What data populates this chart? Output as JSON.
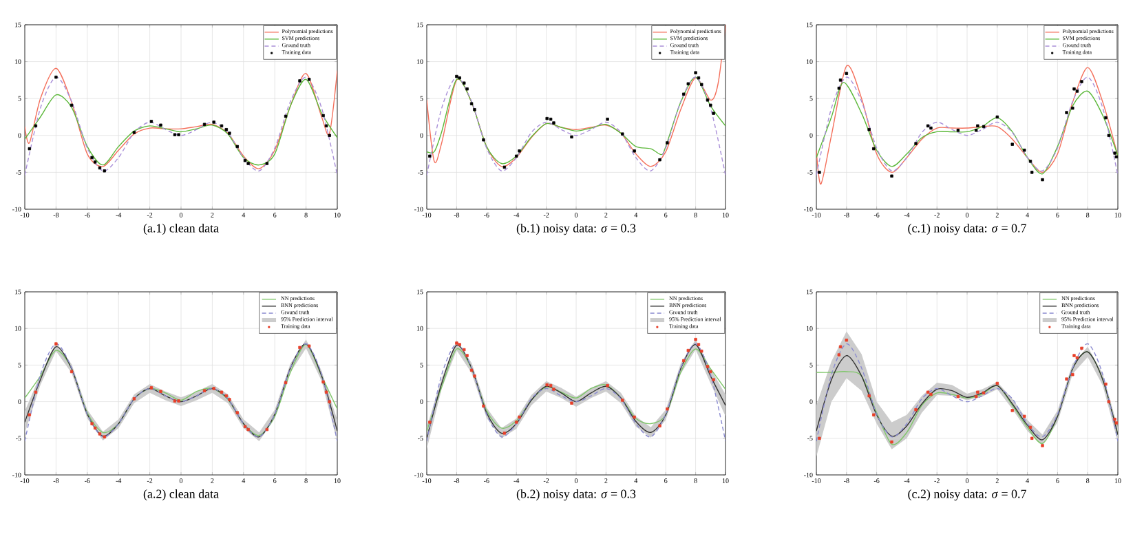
{
  "chart_data": [
    {
      "type": "line",
      "title": "(a.1) clean data",
      "xlim": [
        -10,
        10
      ],
      "ylim": [
        -10,
        15
      ],
      "xticks": [
        -10,
        -8,
        -6,
        -4,
        -2,
        0,
        2,
        4,
        6,
        8,
        10
      ],
      "yticks": [
        -10,
        -5,
        0,
        5,
        10,
        15
      ],
      "grid": true,
      "legend": "top right",
      "x": [
        -10,
        -9,
        -8,
        -7,
        -6,
        -5,
        -4,
        -3,
        -2,
        -1,
        0,
        1,
        2,
        3,
        4,
        5,
        6,
        7,
        8,
        9,
        10
      ],
      "series": [
        {
          "name": "Polynomial predictions",
          "color": "#f4705c",
          "x": [
            -10,
            -9.7,
            -9,
            -8,
            -7,
            -6,
            -5,
            -4,
            -3,
            -2,
            -1,
            0,
            1,
            2,
            3,
            4,
            5,
            6,
            7,
            8,
            9,
            9.5,
            10
          ],
          "values": [
            1.2,
            -1,
            5,
            9.1,
            4.5,
            -2.5,
            -4.2,
            -2,
            0.2,
            1,
            0.9,
            0.9,
            1.2,
            1.5,
            0.3,
            -2.8,
            -4.5,
            -2,
            4,
            8.4,
            2.5,
            0.3,
            8.8
          ]
        },
        {
          "name": "SVM predictions",
          "color": "#5cb83a",
          "values": [
            -0.5,
            2.5,
            5.5,
            3.8,
            -1.5,
            -4,
            -1.5,
            0.6,
            1.3,
            0.9,
            0.5,
            0.9,
            1.4,
            0.2,
            -3,
            -4,
            -2.5,
            4,
            7.6,
            3,
            -0.3
          ]
        },
        {
          "name": "Ground truth",
          "color": "#a98fd8",
          "line_style": "dashed",
          "values": [
            -5.4,
            3.7,
            7.9,
            4.6,
            -1.7,
            -4.8,
            -3.0,
            0.4,
            1.8,
            0.8,
            0,
            0.8,
            1.8,
            0.4,
            -3.0,
            -4.8,
            -1.7,
            4.6,
            7.9,
            3.7,
            -5.4
          ]
        },
        {
          "name": "Training data",
          "type": "scatter",
          "marker": "square",
          "color": "#000000",
          "x": [
            -9.7,
            -9.3,
            -8,
            -7,
            -5.7,
            -5.5,
            -5.2,
            -4.9,
            -3,
            -1.9,
            -1.3,
            -0.4,
            -0.15,
            1.5,
            2.1,
            2.6,
            2.9,
            3.1,
            3.6,
            4.1,
            4.3,
            5.5,
            6.7,
            7.6,
            8.2,
            9.1,
            9.3,
            9.5
          ],
          "values": [
            -1.8,
            1.3,
            7.9,
            4.1,
            -3,
            -3.6,
            -4.4,
            -4.8,
            0.4,
            1.9,
            1.4,
            0.1,
            0.1,
            1.5,
            1.8,
            1.3,
            0.8,
            0.3,
            -1.5,
            -3.4,
            -3.8,
            -3.8,
            2.6,
            7.4,
            7.6,
            2.7,
            1.3,
            0
          ]
        }
      ]
    },
    {
      "type": "line",
      "title": "(b.1) noisy data: *σ* = 0.3",
      "xlim": [
        -10,
        10
      ],
      "ylim": [
        -10,
        15
      ],
      "xticks": [
        -10,
        -8,
        -6,
        -4,
        -2,
        0,
        2,
        4,
        6,
        8,
        10
      ],
      "yticks": [
        -10,
        -5,
        0,
        5,
        10,
        15
      ],
      "grid": true,
      "legend": "top right",
      "x": [
        -10,
        -9,
        -8,
        -7,
        -6,
        -5,
        -4,
        -3,
        -2,
        -1,
        0,
        1,
        2,
        3,
        4,
        5,
        6,
        7,
        8,
        9,
        10
      ],
      "series": [
        {
          "name": "Polynomial predictions",
          "color": "#f4705c",
          "x": [
            -10,
            -9.5,
            -9,
            -8,
            -7,
            -6,
            -5,
            -4,
            -3,
            -2,
            -1,
            0,
            1,
            2,
            3,
            4,
            5,
            6,
            7,
            8,
            9,
            9.5,
            10
          ],
          "values": [
            4.8,
            -3.5,
            -1,
            7.5,
            4.5,
            -1.5,
            -4.2,
            -3,
            -0.3,
            1.6,
            1.1,
            0.8,
            1.1,
            1.4,
            0.3,
            -2.5,
            -4.2,
            -2.2,
            3.5,
            7.8,
            4.8,
            7,
            15
          ]
        },
        {
          "name": "SVM predictions",
          "color": "#5cb83a",
          "x": [
            -10,
            -9.5,
            -9,
            -8,
            -7,
            -6,
            -5,
            -4,
            -3,
            -2,
            -1,
            0,
            1,
            2,
            3,
            4,
            5,
            5.7,
            6,
            7,
            8,
            9,
            10
          ],
          "values": [
            -2.2,
            -2.2,
            0.5,
            7.6,
            4.5,
            -1.5,
            -3.8,
            -2.8,
            -0.2,
            1.6,
            1.1,
            0.6,
            1,
            1.5,
            0.3,
            -1.5,
            -1.8,
            -2.6,
            -1.5,
            4.5,
            7.9,
            4,
            1.3
          ]
        },
        {
          "name": "Ground truth",
          "color": "#a98fd8",
          "line_style": "dashed",
          "values": [
            -5.4,
            3.7,
            7.9,
            4.6,
            -1.7,
            -4.8,
            -3.0,
            0.4,
            1.8,
            0.8,
            0,
            0.8,
            1.8,
            0.4,
            -3.0,
            -4.8,
            -1.7,
            4.6,
            7.9,
            3.7,
            -5.4
          ]
        },
        {
          "name": "Training data",
          "type": "scatter",
          "marker": "square",
          "color": "#000000",
          "x": [
            -9.8,
            -8,
            -7.8,
            -7.5,
            -7.3,
            -7,
            -6.8,
            -6.2,
            -4.8,
            -4,
            -3.8,
            -1.95,
            -1.7,
            -1.5,
            -0.3,
            2.1,
            3.1,
            3.9,
            5.6,
            6.1,
            7.2,
            7.5,
            8,
            8.2,
            8.4,
            8.8,
            9,
            9.2
          ],
          "values": [
            -2.8,
            8,
            7.8,
            7.1,
            6.3,
            4.3,
            3.5,
            -0.6,
            -4.3,
            -2.8,
            -2.1,
            2.3,
            2.2,
            1.7,
            -0.2,
            2.2,
            0.2,
            -2.1,
            -3.3,
            -1,
            5.6,
            7,
            8.5,
            7.8,
            6.9,
            4.8,
            4.1,
            3
          ]
        }
      ]
    },
    {
      "type": "line",
      "title": "(c.1) noisy data: *σ* = 0.7",
      "xlim": [
        -10,
        10
      ],
      "ylim": [
        -10,
        15
      ],
      "xticks": [
        -10,
        -8,
        -6,
        -4,
        -2,
        0,
        2,
        4,
        6,
        8,
        10
      ],
      "yticks": [
        -10,
        -5,
        0,
        5,
        10,
        15
      ],
      "grid": true,
      "legend": "top right",
      "x": [
        -10,
        -9,
        -8,
        -7,
        -6,
        -5,
        -4,
        -3,
        -2,
        -1,
        0,
        1,
        2,
        3,
        4,
        5,
        6,
        7,
        8,
        9,
        10
      ],
      "series": [
        {
          "name": "Polynomial predictions",
          "color": "#f4705c",
          "x": [
            -10,
            -9.7,
            -9,
            -8,
            -7,
            -6,
            -5,
            -4,
            -3,
            -2,
            -1,
            0,
            1,
            2,
            3,
            4,
            5,
            6,
            7,
            8,
            9,
            10
          ],
          "values": [
            -2,
            -6.6,
            0,
            9.4,
            5,
            -2.5,
            -5,
            -3,
            -0.5,
            1,
            1,
            1,
            1.2,
            1.2,
            -0.5,
            -3,
            -5,
            -2.5,
            4.5,
            9.2,
            4.5,
            -2.8
          ]
        },
        {
          "name": "SVM predictions",
          "color": "#5cb83a",
          "x": [
            -10,
            -9,
            -8.2,
            -7,
            -6,
            -5,
            -4,
            -3,
            -2,
            -1,
            0,
            1,
            2,
            3,
            4,
            5,
            6,
            7,
            8,
            9,
            10
          ],
          "values": [
            -3,
            2.5,
            7.2,
            3,
            -2,
            -4.2,
            -2.5,
            -0.3,
            0.5,
            0.5,
            0.5,
            1.2,
            2.4,
            0.5,
            -3,
            -5.2,
            -1.5,
            4,
            6,
            2.7,
            -2.7
          ]
        },
        {
          "name": "Ground truth",
          "color": "#a98fd8",
          "line_style": "dashed",
          "values": [
            -5.4,
            3.7,
            7.9,
            4.6,
            -1.7,
            -4.8,
            -3.0,
            0.4,
            1.8,
            0.8,
            0,
            0.8,
            1.8,
            0.4,
            -3.0,
            -4.8,
            -1.7,
            4.6,
            7.9,
            3.7,
            -5.4
          ]
        },
        {
          "name": "Training data",
          "type": "scatter",
          "marker": "square",
          "color": "#000000",
          "x": [
            -9.8,
            -8.5,
            -8.4,
            -8,
            -6.5,
            -6.2,
            -5,
            -3.4,
            -2.6,
            -2.4,
            -0.6,
            0.6,
            0.7,
            1.1,
            2,
            3,
            3.8,
            4.2,
            4.3,
            5,
            6.6,
            7,
            7.1,
            7.3,
            7.6,
            9.2,
            9.4,
            9.8,
            9.9
          ],
          "values": [
            -5,
            6.4,
            7.5,
            8.4,
            0.8,
            -1.8,
            -5.5,
            -1.1,
            1.3,
            1,
            0.7,
            0.7,
            1.3,
            1.2,
            2.5,
            -1.2,
            -2,
            -3.5,
            -5,
            -6,
            3.1,
            3.7,
            6.3,
            6,
            7.3,
            2.4,
            0,
            -2.4,
            -2.9
          ]
        }
      ]
    },
    {
      "type": "line",
      "title": "(a.2) clean data",
      "annotations": [
        "95% Prediction interval"
      ],
      "xlim": [
        -10,
        10
      ],
      "ylim": [
        -10,
        15
      ],
      "xticks": [
        -10,
        -8,
        -6,
        -4,
        -2,
        0,
        2,
        4,
        6,
        8,
        10
      ],
      "yticks": [
        -10,
        -5,
        0,
        5,
        10,
        15
      ],
      "grid": true,
      "legend": "top right",
      "x": [
        -10,
        -9,
        -8,
        -7,
        -6,
        -5,
        -4,
        -3,
        -2,
        -1,
        0,
        1,
        2,
        3,
        4,
        5,
        6,
        7,
        8,
        9,
        10
      ],
      "series": [
        {
          "name": "NN predictions",
          "color": "#7fc66a",
          "values": [
            0.5,
            3.5,
            7,
            4.5,
            -1.5,
            -4.2,
            -3,
            0.4,
            1.8,
            1.2,
            0.2,
            1.4,
            1.8,
            0.3,
            -3,
            -4.6,
            -2,
            4,
            7.8,
            3.5,
            -1
          ]
        },
        {
          "name": "BNN predictions",
          "color": "#333333",
          "values": [
            -2.8,
            3,
            7.5,
            4.5,
            -1.7,
            -4.7,
            -3,
            0.4,
            1.8,
            0.8,
            0,
            0.8,
            1.8,
            0.4,
            -3,
            -4.8,
            -1.7,
            4.6,
            7.9,
            3.5,
            -4
          ],
          "lower": [
            -4.3,
            2.3,
            6.9,
            3.9,
            -2.3,
            -5.3,
            -3.6,
            -0.2,
            1.2,
            0.2,
            -0.6,
            0.2,
            1.2,
            -0.2,
            -3.6,
            -5.4,
            -2.3,
            4,
            7.3,
            2.8,
            -5.5
          ],
          "upper": [
            -1.3,
            3.7,
            8.1,
            5.1,
            -1.1,
            -4.1,
            -2.4,
            1,
            2.4,
            1.4,
            0.6,
            1.4,
            2.4,
            1,
            -2.4,
            -4.2,
            -1.1,
            5.2,
            8.5,
            4.2,
            -2.5
          ]
        },
        {
          "name": "Ground truth",
          "color": "#8a8ad0",
          "line_style": "dashed",
          "values": [
            -5.4,
            3.7,
            7.9,
            4.6,
            -1.7,
            -4.8,
            -3.0,
            0.4,
            1.8,
            0.8,
            0,
            0.8,
            1.8,
            0.4,
            -3.0,
            -4.8,
            -1.7,
            4.6,
            7.9,
            3.7,
            -5.4
          ]
        },
        {
          "name": "Training data",
          "type": "scatter",
          "marker": "square",
          "color": "#e8402a",
          "x": [
            -9.7,
            -9.3,
            -8,
            -7,
            -5.7,
            -5.5,
            -5.2,
            -4.9,
            -3,
            -1.9,
            -1.3,
            -0.4,
            -0.15,
            1.5,
            2.1,
            2.6,
            2.9,
            3.1,
            3.6,
            4.1,
            4.3,
            5.5,
            6.7,
            7.6,
            8.2,
            9.1,
            9.3,
            9.5
          ],
          "values": [
            -1.8,
            1.3,
            7.9,
            4.1,
            -3,
            -3.6,
            -4.4,
            -4.8,
            0.4,
            1.9,
            1.4,
            0.1,
            0.1,
            1.5,
            1.8,
            1.3,
            0.8,
            0.3,
            -1.5,
            -3.4,
            -3.8,
            -3.8,
            2.6,
            7.4,
            7.6,
            2.7,
            1.3,
            0
          ]
        }
      ]
    },
    {
      "type": "line",
      "title": "(b.2) noisy data: *σ* = 0.3",
      "annotations": [
        "95% Prediction interval"
      ],
      "xlim": [
        -10,
        10
      ],
      "ylim": [
        -10,
        15
      ],
      "xticks": [
        -10,
        -8,
        -6,
        -4,
        -2,
        0,
        2,
        4,
        6,
        8,
        10
      ],
      "yticks": [
        -10,
        -5,
        0,
        5,
        10,
        15
      ],
      "grid": true,
      "legend": "top right",
      "x": [
        -10,
        -9,
        -8,
        -7,
        -6,
        -5,
        -4,
        -3,
        -2,
        -1,
        0,
        1,
        2,
        3,
        4,
        5,
        6,
        7,
        8,
        9,
        10
      ],
      "series": [
        {
          "name": "NN predictions",
          "color": "#7fc66a",
          "values": [
            -4,
            2,
            7.2,
            4.5,
            -1.2,
            -3.6,
            -2.6,
            0.2,
            2,
            1.3,
            0.5,
            1.8,
            2.3,
            0.5,
            -2.3,
            -3,
            -1.8,
            4,
            7.2,
            4.5,
            1.7
          ]
        },
        {
          "name": "BNN predictions",
          "color": "#333333",
          "values": [
            -5,
            2.5,
            7.7,
            4.6,
            -1.5,
            -4.3,
            -3,
            0.2,
            2.1,
            1.2,
            0,
            1.2,
            2.1,
            0.5,
            -2.7,
            -4.2,
            -1.8,
            4.5,
            7.8,
            3.5,
            -0.5
          ],
          "lower": [
            -6.5,
            1.8,
            7,
            3.9,
            -2.2,
            -5,
            -3.7,
            -0.5,
            1.4,
            0.5,
            -0.7,
            0.5,
            1.4,
            -0.2,
            -3.4,
            -4.9,
            -2.5,
            3.8,
            7.1,
            2.5,
            -2
          ],
          "upper": [
            -3.5,
            3.2,
            8.4,
            5.3,
            -0.8,
            -3.6,
            -2.3,
            0.9,
            2.8,
            1.9,
            0.7,
            1.9,
            2.8,
            1.2,
            -2,
            -3.5,
            -1.1,
            5.2,
            8.5,
            4.5,
            1
          ]
        },
        {
          "name": "Ground truth",
          "color": "#8a8ad0",
          "line_style": "dashed",
          "values": [
            -5.4,
            3.7,
            7.9,
            4.6,
            -1.7,
            -4.8,
            -3.0,
            0.4,
            1.8,
            0.8,
            0,
            0.8,
            1.8,
            0.4,
            -3.0,
            -4.8,
            -1.7,
            4.6,
            7.9,
            3.7,
            -5.4
          ]
        },
        {
          "name": "Training data",
          "type": "scatter",
          "marker": "square",
          "color": "#e8402a",
          "x": [
            -9.8,
            -8,
            -7.8,
            -7.5,
            -7.3,
            -7,
            -6.8,
            -6.2,
            -4.8,
            -4,
            -3.8,
            -1.95,
            -1.7,
            -1.5,
            -0.3,
            2.1,
            3.1,
            3.9,
            5.6,
            6.1,
            7.2,
            7.5,
            8,
            8.2,
            8.4,
            8.8,
            9,
            9.2
          ],
          "values": [
            -2.8,
            8,
            7.8,
            7.1,
            6.3,
            4.3,
            3.5,
            -0.6,
            -4.3,
            -2.8,
            -2.1,
            2.3,
            2.2,
            1.7,
            -0.2,
            2.2,
            0.2,
            -2.1,
            -3.3,
            -1,
            5.6,
            7,
            8.5,
            7.8,
            6.9,
            4.8,
            4.1,
            3
          ]
        }
      ]
    },
    {
      "type": "line",
      "title": "(c.2) noisy data: *σ* = 0.7",
      "annotations": [
        "95% Prediction interval"
      ],
      "xlim": [
        -10,
        10
      ],
      "ylim": [
        -10,
        15
      ],
      "xticks": [
        -10,
        -8,
        -6,
        -4,
        -2,
        0,
        2,
        4,
        6,
        8,
        10
      ],
      "yticks": [
        -10,
        -5,
        0,
        5,
        10,
        15
      ],
      "grid": true,
      "legend": "top right",
      "x": [
        -10,
        -9,
        -8,
        -7,
        -6,
        -5,
        -4,
        -3,
        -2,
        -1,
        0,
        1,
        2,
        3,
        4,
        5,
        6,
        7,
        8,
        9,
        10
      ],
      "series": [
        {
          "name": "NN predictions",
          "color": "#7fc66a",
          "values": [
            4,
            4,
            4.1,
            3.5,
            -1.5,
            -5.8,
            -4.2,
            -0.5,
            1.2,
            1,
            0.5,
            1,
            2.2,
            -0.5,
            -3.5,
            -5.7,
            -2,
            4.5,
            6.8,
            3,
            -4.5
          ]
        },
        {
          "name": "BNN predictions",
          "color": "#333333",
          "values": [
            -4,
            3,
            6.3,
            3.5,
            -1.8,
            -4.7,
            -3.3,
            -0.3,
            1.7,
            1.5,
            0.6,
            1.2,
            2.2,
            -0.3,
            -3.2,
            -5.2,
            -2,
            4.5,
            6.8,
            3,
            -4.5
          ],
          "lower": [
            -7.5,
            0,
            3.2,
            1.5,
            -3,
            -6.5,
            -5,
            -1.5,
            0.9,
            0.8,
            0.2,
            0.7,
            1.7,
            -1,
            -4,
            -6,
            -2.8,
            3.8,
            6.1,
            2.2,
            -5.5
          ],
          "upper": [
            -0.5,
            5.5,
            9.6,
            6.5,
            0,
            -2.8,
            -1.8,
            0.8,
            2.6,
            2.3,
            1.1,
            1.7,
            2.7,
            0.4,
            -2.5,
            -4.5,
            -1.2,
            5.2,
            7.5,
            3.8,
            -3.5
          ]
        },
        {
          "name": "Ground truth",
          "color": "#8a8ad0",
          "line_style": "dashed",
          "values": [
            -5.4,
            3.7,
            7.9,
            4.6,
            -1.7,
            -4.8,
            -3.0,
            0.4,
            1.8,
            0.8,
            0,
            0.8,
            1.8,
            0.4,
            -3.0,
            -4.8,
            -1.7,
            4.6,
            7.9,
            3.7,
            -5.4
          ]
        },
        {
          "name": "Training data",
          "type": "scatter",
          "marker": "square",
          "color": "#e8402a",
          "x": [
            -9.8,
            -8.5,
            -8.4,
            -8,
            -6.5,
            -6.2,
            -5,
            -3.4,
            -2.6,
            -2.4,
            -0.6,
            0.6,
            0.7,
            1.1,
            2,
            3,
            3.8,
            4.2,
            4.3,
            5,
            6.6,
            7,
            7.1,
            7.3,
            7.6,
            9.2,
            9.4,
            9.8,
            9.9
          ],
          "values": [
            -5,
            6.4,
            7.5,
            8.4,
            0.8,
            -1.8,
            -5.5,
            -1.1,
            1.3,
            1,
            0.7,
            0.7,
            1.3,
            1.2,
            2.5,
            -1.2,
            -2,
            -3.5,
            -5,
            -6,
            3.1,
            3.7,
            6.3,
            6,
            7.3,
            2.4,
            0,
            -2.4,
            -2.9
          ]
        }
      ]
    }
  ]
}
